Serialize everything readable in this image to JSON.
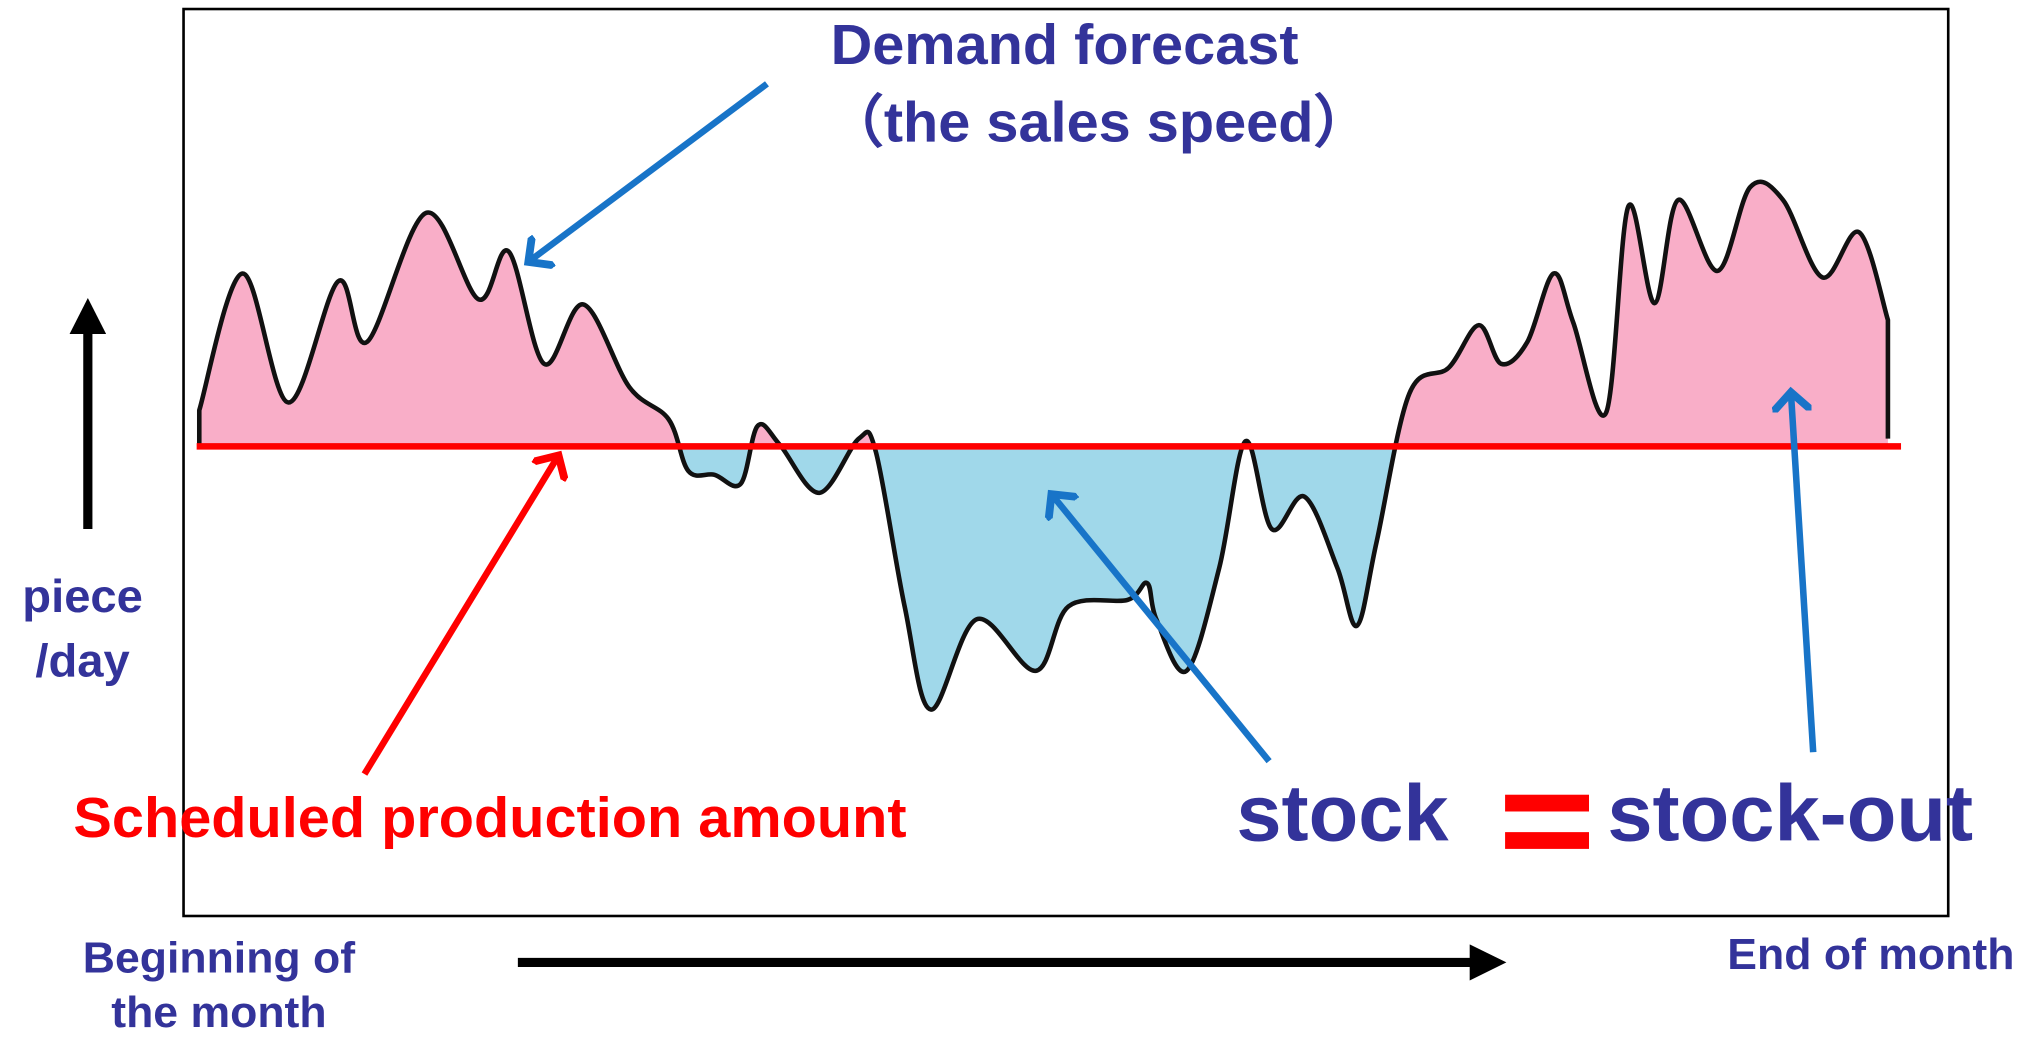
{
  "title": {
    "line1": "Demand forecast",
    "line2": "（the sales speed）"
  },
  "y_axis_label": {
    "line1": "piece",
    "line2": "/day"
  },
  "production_label": "Scheduled production amount",
  "equation": {
    "left": "stock",
    "right": "stock-out"
  },
  "x_axis_label": {
    "start_line1": "Beginning of",
    "start_line2": "the month",
    "end": "End of month"
  }
}
